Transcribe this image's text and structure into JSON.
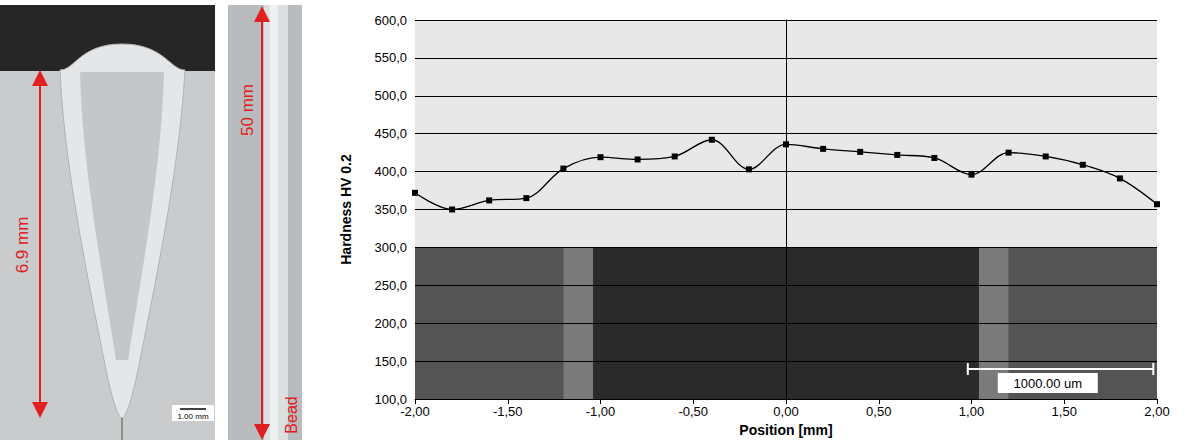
{
  "chart_data": {
    "type": "line",
    "x_label": "Position [mm]",
    "y_label": "Hardness HV 0.2",
    "x": [
      -2.0,
      -1.8,
      -1.6,
      -1.4,
      -1.2,
      -1.0,
      -0.8,
      -0.6,
      -0.4,
      -0.2,
      0.0,
      0.2,
      0.4,
      0.6,
      0.8,
      1.0,
      1.2,
      1.4,
      1.6,
      1.8,
      2.0
    ],
    "values": [
      372,
      350,
      362,
      365,
      404,
      419,
      416,
      420,
      442,
      403,
      436,
      430,
      426,
      422,
      418,
      396,
      425,
      420,
      409,
      391,
      357
    ],
    "color": "#000000",
    "marker": "square",
    "line_style": "smooth",
    "grid": true,
    "xlim": [
      -2,
      2
    ],
    "xticks": [
      {
        "value": -2,
        "label": "-2,00"
      },
      {
        "value": -1.5,
        "label": "-1,50"
      },
      {
        "value": -1,
        "label": "-1,00"
      },
      {
        "value": -0.5,
        "label": "-0,50"
      },
      {
        "value": 0,
        "label": "0,00"
      },
      {
        "value": 0.5,
        "label": "0,50"
      },
      {
        "value": 1,
        "label": "1,00"
      },
      {
        "value": 1.5,
        "label": "1,50"
      },
      {
        "value": 2,
        "label": "2,00"
      }
    ],
    "ylim": [
      100,
      600
    ],
    "yticks": [
      {
        "value": 100,
        "label": "100,0"
      },
      {
        "value": 150,
        "label": "150,0"
      },
      {
        "value": 200,
        "label": "200,0"
      },
      {
        "value": 250,
        "label": "250,0"
      },
      {
        "value": 300,
        "label": "300,0"
      },
      {
        "value": 350,
        "label": "350,0"
      },
      {
        "value": 400,
        "label": "400,0"
      },
      {
        "value": 450,
        "label": "450,0"
      },
      {
        "value": 500,
        "label": "500,0"
      },
      {
        "value": 550,
        "label": "550,0"
      },
      {
        "value": 600,
        "label": "600,0"
      }
    ],
    "annotations": [
      "1000.00 um"
    ]
  },
  "images": {
    "cross_section": {
      "depth": "6.9 mm",
      "scale_bar": "1.00 mm"
    },
    "top_view": {
      "length": "50 mm",
      "label": "Bead"
    }
  }
}
